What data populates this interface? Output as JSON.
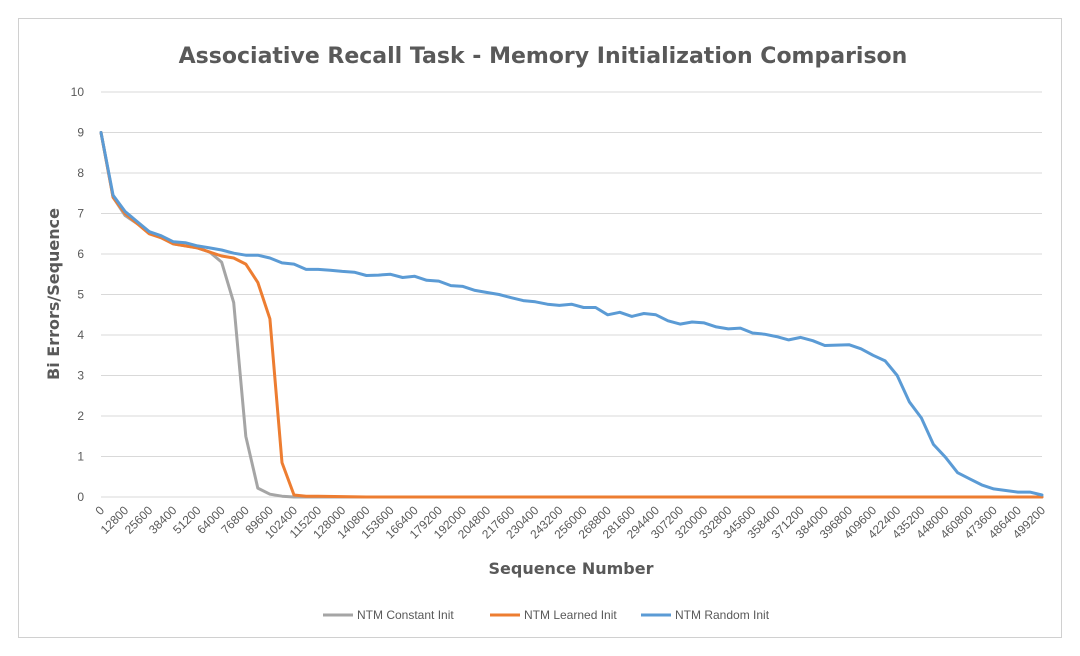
{
  "chart_data": {
    "type": "line",
    "title": "Associative Recall Task - Memory Initialization Comparison",
    "xlabel": "Sequence Number",
    "ylabel": "Bi Errors/Sequence",
    "ylim": [
      0,
      10
    ],
    "yticks": [
      "0",
      "1",
      "2",
      "3",
      "4",
      "5",
      "6",
      "7",
      "8",
      "9",
      "10"
    ],
    "xlim": [
      0,
      499200
    ],
    "xticks": [
      "0",
      "12800",
      "25600",
      "38400",
      "51200",
      "64000",
      "76800",
      "89600",
      "102400",
      "115200",
      "128000",
      "140800",
      "153600",
      "166400",
      "179200",
      "192000",
      "204800",
      "217600",
      "230400",
      "243200",
      "256000",
      "268800",
      "281600",
      "294400",
      "307200",
      "320000",
      "332800",
      "345600",
      "358400",
      "371200",
      "384000",
      "396800",
      "409600",
      "422400",
      "435200",
      "448000",
      "460800",
      "473600",
      "486400",
      "499200"
    ],
    "grid": "horizontal",
    "legend_position": "bottom",
    "series": [
      {
        "name": "NTM Constant Init",
        "color": "#a5a5a5",
        "x": [
          0,
          6400,
          12800,
          19200,
          25600,
          32000,
          38400,
          44800,
          51200,
          57600,
          64000,
          70400,
          76800,
          83200,
          89600,
          96000,
          102400,
          115200,
          128000,
          140800,
          499200
        ],
        "y": [
          9.0,
          7.4,
          6.95,
          6.75,
          6.55,
          6.4,
          6.25,
          6.2,
          6.15,
          6.05,
          5.8,
          4.8,
          1.5,
          0.22,
          0.07,
          0.02,
          0.0,
          0.0,
          0.0,
          0.0,
          0.0
        ]
      },
      {
        "name": "NTM Learned Init",
        "color": "#ed7d31",
        "x": [
          0,
          6400,
          12800,
          19200,
          25600,
          32000,
          38400,
          44800,
          51200,
          57600,
          64000,
          70400,
          76800,
          83200,
          89600,
          96000,
          102400,
          108800,
          115200,
          128000,
          140800,
          499200
        ],
        "y": [
          9.0,
          7.4,
          7.0,
          6.75,
          6.5,
          6.4,
          6.25,
          6.2,
          6.15,
          6.05,
          5.95,
          5.9,
          5.75,
          5.3,
          4.4,
          0.85,
          0.05,
          0.02,
          0.02,
          0.01,
          0.0,
          0.0
        ]
      },
      {
        "name": "NTM Random Init",
        "color": "#5b9bd5",
        "x": [
          0,
          6400,
          12800,
          19200,
          25600,
          32000,
          38400,
          44800,
          51200,
          57600,
          64000,
          70400,
          76800,
          83200,
          89600,
          96000,
          102400,
          108800,
          115200,
          121600,
          128000,
          134400,
          140800,
          147200,
          153600,
          160000,
          166400,
          172800,
          179200,
          185600,
          192000,
          198400,
          204800,
          211200,
          217600,
          224000,
          230400,
          236800,
          243200,
          249600,
          256000,
          262400,
          268800,
          275200,
          281600,
          288000,
          294400,
          300800,
          307200,
          313600,
          320000,
          326400,
          332800,
          339200,
          345600,
          352000,
          358400,
          364800,
          371200,
          377600,
          384000,
          390400,
          396800,
          403200,
          409600,
          416000,
          422400,
          428800,
          435200,
          441600,
          448000,
          454400,
          460800,
          467200,
          473600,
          480000,
          486400,
          492800,
          499200
        ],
        "y": [
          9.0,
          7.45,
          7.05,
          6.8,
          6.55,
          6.45,
          6.3,
          6.28,
          6.2,
          6.15,
          6.1,
          6.02,
          5.97,
          5.97,
          5.9,
          5.78,
          5.75,
          5.62,
          5.62,
          5.6,
          5.57,
          5.55,
          5.47,
          5.48,
          5.5,
          5.42,
          5.45,
          5.35,
          5.33,
          5.22,
          5.2,
          5.1,
          5.05,
          5.0,
          4.92,
          4.85,
          4.82,
          4.76,
          4.73,
          4.76,
          4.68,
          4.68,
          4.5,
          4.56,
          4.46,
          4.53,
          4.5,
          4.35,
          4.27,
          4.32,
          4.3,
          4.2,
          4.15,
          4.17,
          4.05,
          4.02,
          3.96,
          3.88,
          3.94,
          3.86,
          3.74,
          3.75,
          3.76,
          3.66,
          3.5,
          3.36,
          3.0,
          2.35,
          1.95,
          1.3,
          0.98,
          0.6,
          0.45,
          0.3,
          0.2,
          0.16,
          0.12,
          0.12,
          0.05
        ]
      }
    ]
  }
}
